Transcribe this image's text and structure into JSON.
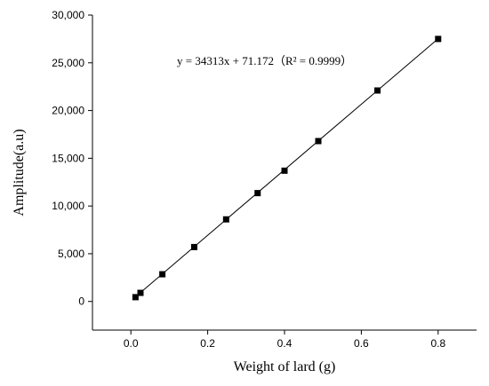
{
  "chart_data": {
    "type": "scatter",
    "title": "",
    "xlabel": "Weight of lard (g)",
    "ylabel": "Amplitude(a.u)",
    "xlim": [
      -0.1,
      0.9
    ],
    "ylim": [
      -3000,
      30000
    ],
    "x_ticks": [
      0.0,
      0.2,
      0.4,
      0.6,
      0.8
    ],
    "x_tick_labels": [
      "0.0",
      "0.2",
      "0.4",
      "0.6",
      "0.8"
    ],
    "y_ticks": [
      0,
      5000,
      10000,
      15000,
      20000,
      25000,
      30000
    ],
    "y_tick_labels": [
      "0",
      "5,000",
      "10,000",
      "15,000",
      "20,000",
      "25,000",
      "30,000"
    ],
    "grid": false,
    "legend": "none",
    "series": [
      {
        "marker": "square",
        "color": "#000000",
        "x": [
          0.012,
          0.025,
          0.082,
          0.165,
          0.248,
          0.33,
          0.4,
          0.488,
          0.642,
          0.8
        ],
        "y": [
          450,
          900,
          2850,
          5700,
          8600,
          11350,
          13700,
          16800,
          22100,
          27500
        ]
      }
    ],
    "fit_line": {
      "slope": 34313,
      "intercept": 71.172,
      "x_range": [
        0.012,
        0.8
      ],
      "color": "#000000"
    },
    "annotation": {
      "text": "y = 34313x + 71.172（R² = 0.9999）",
      "x": 0.12,
      "y": 24800
    }
  }
}
